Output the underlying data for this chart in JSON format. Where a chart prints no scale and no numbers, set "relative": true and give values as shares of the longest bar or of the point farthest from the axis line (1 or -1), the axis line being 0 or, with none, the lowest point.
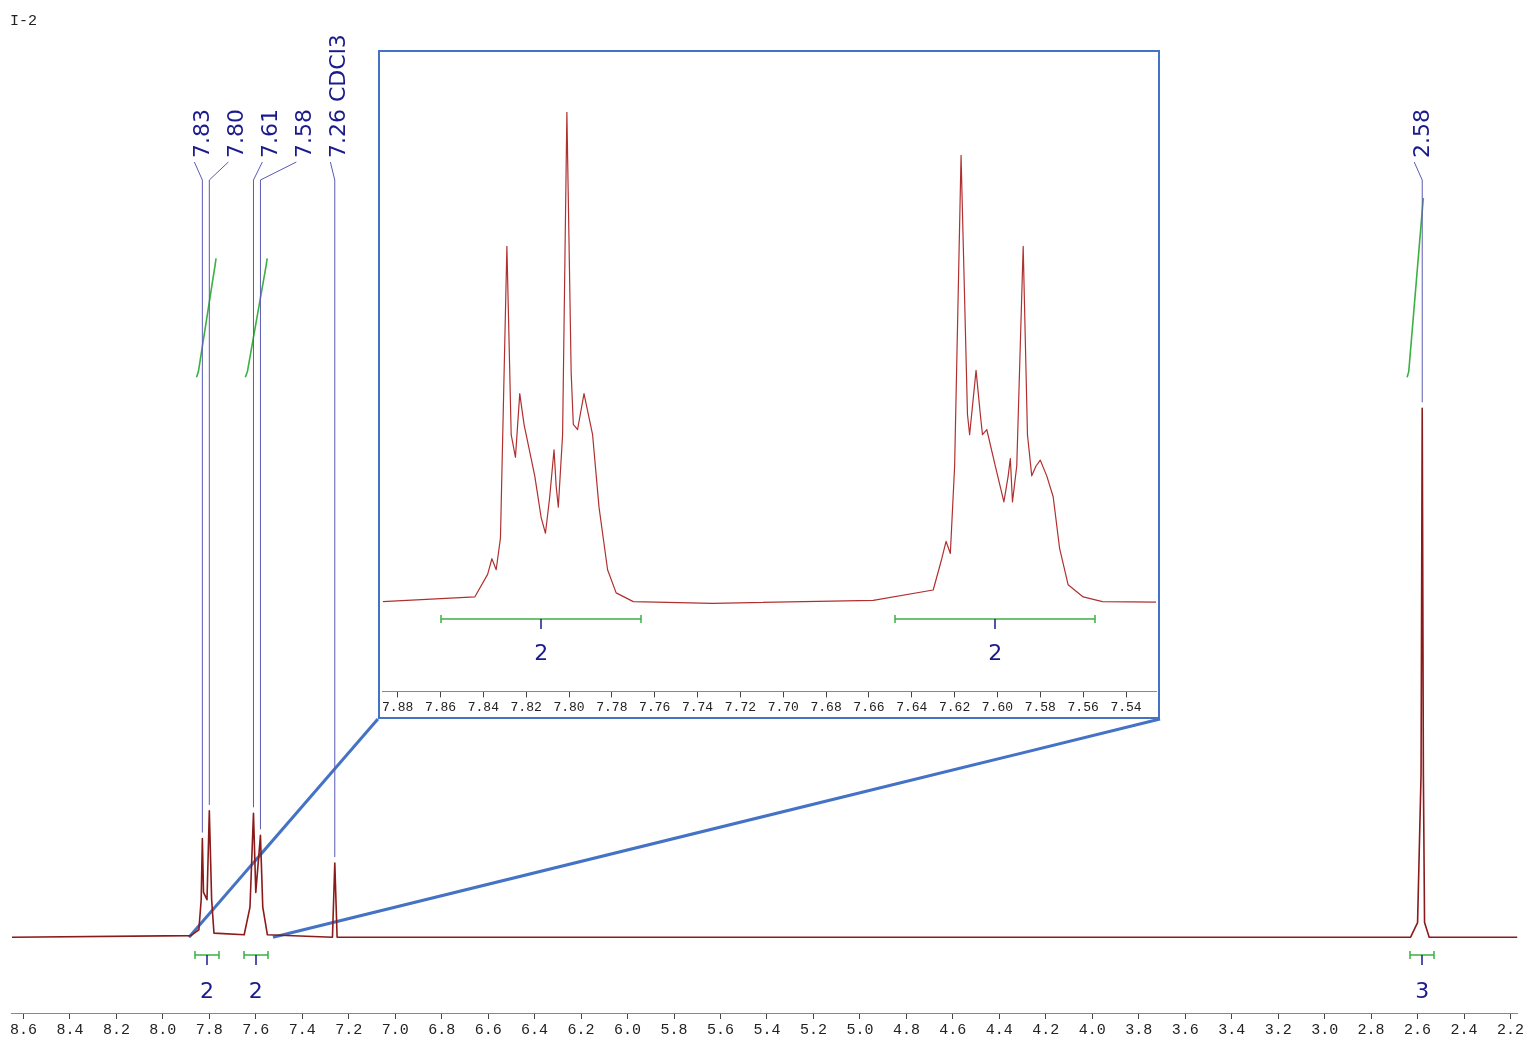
{
  "chart_data": [
    {
      "type": "line",
      "relative": true,
      "marker": "none",
      "xlim": [
        8.65,
        2.17
      ],
      "xticks": [
        8.6,
        8.4,
        8.2,
        {
          "value": 8,
          "label": "8.0"
        },
        7.8,
        7.6,
        7.4,
        7.2,
        {
          "value": 7,
          "label": "7.0"
        },
        6.8,
        6.6,
        6.4,
        6.2,
        {
          "value": 6,
          "label": "6.0"
        },
        5.8,
        5.6,
        5.4,
        5.2,
        {
          "value": 5,
          "label": "5.0"
        },
        4.8,
        4.6,
        4.4,
        4.2,
        {
          "value": 4,
          "label": "4.0"
        },
        3.8,
        3.6,
        3.4,
        3.2,
        {
          "value": 3,
          "label": "3.0"
        },
        2.8,
        2.6,
        2.4,
        2.2
      ],
      "series": [
        {
          "color": "#8b1a1a",
          "x": [
            8.65,
            7.88,
            7.845,
            7.835,
            7.83,
            7.825,
            7.81,
            7.8,
            7.79,
            7.78,
            7.65,
            7.625,
            7.61,
            7.6,
            7.58,
            7.57,
            7.55,
            7.27,
            7.26,
            7.25,
            2.63,
            2.6,
            2.585,
            2.58,
            2.575,
            2.57,
            2.55,
            2.17
          ],
          "values": [
            0.093,
            0.095,
            0.102,
            0.139,
            0.214,
            0.148,
            0.139,
            0.248,
            0.139,
            0.098,
            0.096,
            0.13,
            0.245,
            0.148,
            0.218,
            0.13,
            0.096,
            0.093,
            0.184,
            0.093,
            0.093,
            0.111,
            0.293,
            0.742,
            0.293,
            0.111,
            0.093,
            0.093
          ]
        },
        {
          "color": "#3cb043",
          "x": [
            7.855,
            7.847,
            7.775,
            7.771
          ],
          "values": [
            0.78,
            0.787,
            0.918,
            0.926
          ]
        },
        {
          "color": "#3cb043",
          "x": [
            7.645,
            7.636,
            7.555,
            7.551
          ],
          "values": [
            0.78,
            0.787,
            0.918,
            0.926
          ]
        },
        {
          "color": "#3cb043",
          "x": [
            2.645,
            2.638,
            2.578,
            2.575
          ],
          "values": [
            0.78,
            0.787,
            0.991,
            1
          ]
        }
      ],
      "annotations": [
        "I-2",
        {
          "text": "7.83",
          "x": 7.83,
          "y": 0.214
        },
        {
          "text": "7.80",
          "x": 7.8,
          "y": 0.248
        },
        {
          "text": "7.61",
          "x": 7.61,
          "y": 0.245
        },
        {
          "text": "7.58",
          "x": 7.58,
          "y": 0.218
        },
        {
          "text": "7.26 CDCl3",
          "x": 7.26,
          "y": 0.184
        },
        {
          "text": "2.58",
          "x": 2.58,
          "y": 0.742
        },
        {
          "text": "2",
          "x": 7.81
        },
        {
          "text": "2",
          "x": 7.6
        },
        {
          "text": "3",
          "x": 2.58
        }
      ]
    },
    {
      "type": "line",
      "relative": true,
      "marker": "none",
      "xlim": [
        7.887,
        7.526
      ],
      "xticks": [
        7.88,
        7.86,
        7.84,
        7.82,
        {
          "value": 7.8,
          "label": "7.80"
        },
        7.78,
        7.76,
        7.74,
        7.72,
        {
          "value": 7.7,
          "label": "7.70"
        },
        7.68,
        7.66,
        7.64,
        7.62,
        {
          "value": 7.6,
          "label": "7.60"
        },
        7.58,
        7.56,
        7.54
      ],
      "series": [
        {
          "color": "#b03030",
          "x": [
            7.887,
            7.844,
            7.838,
            7.836,
            7.834,
            7.832,
            7.829,
            7.827,
            7.825,
            7.823,
            7.821,
            7.816,
            7.813,
            7.811,
            7.809,
            7.807,
            7.806,
            7.805,
            7.803,
            7.801,
            7.799,
            7.798,
            7.796,
            7.793,
            7.789,
            7.786,
            7.782,
            7.778,
            7.77,
            7.733,
            7.658,
            7.63,
            7.626,
            7.624,
            7.622,
            7.62,
            7.617,
            7.614,
            7.613,
            7.61,
            7.608,
            7.607,
            7.605,
            7.601,
            7.597,
            7.595,
            7.594,
            7.593,
            7.591,
            7.588,
            7.586,
            7.584,
            7.582,
            7.58,
            7.577,
            7.574,
            7.571,
            7.567,
            7.56,
            7.551,
            7.526
          ],
          "values": [
            0.155,
            0.163,
            0.202,
            0.229,
            0.21,
            0.265,
            0.768,
            0.443,
            0.404,
            0.514,
            0.461,
            0.372,
            0.3,
            0.273,
            0.336,
            0.417,
            0.354,
            0.318,
            0.443,
            1,
            0.55,
            0.461,
            0.452,
            0.514,
            0.443,
            0.318,
            0.21,
            0.17,
            0.155,
            0.152,
            0.157,
            0.175,
            0.229,
            0.259,
            0.238,
            0.389,
            0.925,
            0.478,
            0.443,
            0.554,
            0.478,
            0.443,
            0.452,
            0.389,
            0.327,
            0.372,
            0.402,
            0.327,
            0.389,
            0.768,
            0.443,
            0.372,
            0.389,
            0.399,
            0.372,
            0.336,
            0.247,
            0.184,
            0.163,
            0.155,
            0.154
          ]
        }
      ],
      "annotations": [
        {
          "text": "2",
          "x": 7.813
        },
        {
          "text": "2",
          "x": 7.601
        }
      ]
    }
  ]
}
